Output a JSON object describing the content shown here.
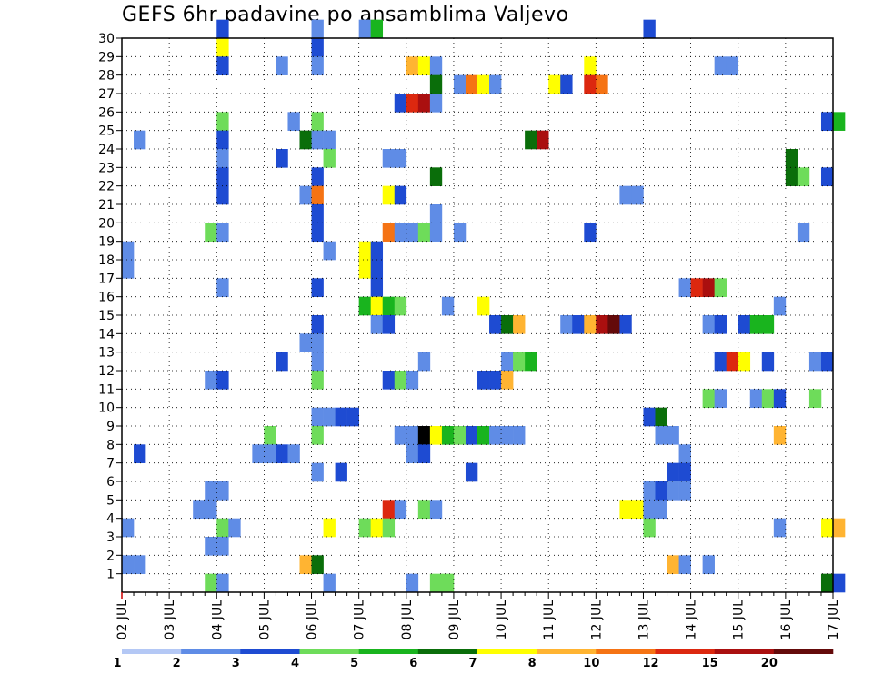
{
  "title": "GEFS 6hr padavine po ansamblima Valjevo",
  "chart_data": {
    "type": "heatmap",
    "title": "GEFS 6hr padavine po ansamblima Valjevo",
    "xlabel": "",
    "ylabel": "",
    "x_tick_labels": [
      "02 JUL",
      "03 JUL",
      "04 JUL",
      "05 JUL",
      "06 JUL",
      "07 JUL",
      "08 JUL",
      "09 JUL",
      "10 JUL",
      "11 JUL",
      "12 JUL",
      "13 JUL",
      "14 JUL",
      "15 JUL",
      "16 JUL",
      "17 JUL"
    ],
    "y_tick_labels": [
      "1",
      "2",
      "3",
      "4",
      "5",
      "6",
      "7",
      "8",
      "9",
      "10",
      "11",
      "12",
      "13",
      "14",
      "15",
      "16",
      "17",
      "18",
      "19",
      "20",
      "21",
      "22",
      "23",
      "24",
      "25",
      "26",
      "27",
      "28",
      "29",
      "30"
    ],
    "ylim": [
      0,
      30
    ],
    "time_steps": 60,
    "step_hours": 6,
    "grid": true,
    "colorbar": {
      "labels": [
        "1",
        "2",
        "3",
        "4",
        "5",
        "6",
        "7",
        "8",
        "10",
        "12",
        "15",
        "20"
      ],
      "colors": [
        "#b4c8f5",
        "#5f8ce6",
        "#1e4bd2",
        "#6edc5a",
        "#19b41e",
        "#0a6e0a",
        "#ffff00",
        "#ffb432",
        "#f57314",
        "#dc280f",
        "#aa0f0f",
        "#640a0a"
      ]
    },
    "cells": [
      [
        8,
        30,
        2
      ],
      [
        16,
        30,
        1
      ],
      [
        20,
        30,
        1
      ],
      [
        21,
        30,
        4
      ],
      [
        44,
        30,
        2
      ],
      [
        8,
        29,
        6
      ],
      [
        16,
        29,
        2
      ],
      [
        8,
        28,
        2
      ],
      [
        13,
        28,
        1
      ],
      [
        16,
        28,
        1
      ],
      [
        24,
        28,
        7
      ],
      [
        25,
        28,
        6
      ],
      [
        26,
        28,
        1
      ],
      [
        39,
        28,
        6
      ],
      [
        50,
        28,
        1
      ],
      [
        51,
        28,
        1
      ],
      [
        26,
        27,
        5
      ],
      [
        28,
        27,
        1
      ],
      [
        29,
        27,
        8
      ],
      [
        30,
        27,
        6
      ],
      [
        31,
        27,
        1
      ],
      [
        36,
        27,
        6
      ],
      [
        37,
        27,
        2
      ],
      [
        39,
        27,
        9
      ],
      [
        40,
        27,
        8
      ],
      [
        23,
        26,
        2
      ],
      [
        24,
        26,
        9
      ],
      [
        25,
        26,
        10
      ],
      [
        26,
        26,
        1
      ],
      [
        8,
        25,
        3
      ],
      [
        14,
        25,
        1
      ],
      [
        16,
        25,
        3
      ],
      [
        59,
        25,
        2
      ],
      [
        60,
        25,
        4
      ],
      [
        1,
        24,
        1
      ],
      [
        8,
        24,
        2
      ],
      [
        15,
        24,
        5
      ],
      [
        16,
        24,
        1
      ],
      [
        17,
        24,
        1
      ],
      [
        34,
        24,
        5
      ],
      [
        35,
        24,
        10
      ],
      [
        8,
        23,
        1
      ],
      [
        13,
        23,
        2
      ],
      [
        17,
        23,
        3
      ],
      [
        22,
        23,
        1
      ],
      [
        23,
        23,
        1
      ],
      [
        56,
        23,
        5
      ],
      [
        8,
        22,
        2
      ],
      [
        16,
        22,
        2
      ],
      [
        26,
        22,
        5
      ],
      [
        56,
        22,
        5
      ],
      [
        57,
        22,
        3
      ],
      [
        59,
        22,
        2
      ],
      [
        8,
        21,
        2
      ],
      [
        15,
        21,
        1
      ],
      [
        16,
        21,
        8
      ],
      [
        22,
        21,
        6
      ],
      [
        23,
        21,
        2
      ],
      [
        42,
        21,
        1
      ],
      [
        43,
        21,
        1
      ],
      [
        16,
        20,
        2
      ],
      [
        26,
        20,
        1
      ],
      [
        7,
        19,
        3
      ],
      [
        8,
        19,
        1
      ],
      [
        16,
        19,
        2
      ],
      [
        22,
        19,
        8
      ],
      [
        23,
        19,
        1
      ],
      [
        24,
        19,
        1
      ],
      [
        25,
        19,
        3
      ],
      [
        26,
        19,
        1
      ],
      [
        28,
        19,
        1
      ],
      [
        39,
        19,
        2
      ],
      [
        57,
        19,
        1
      ],
      [
        0,
        18,
        1
      ],
      [
        17,
        18,
        1
      ],
      [
        20,
        18,
        6
      ],
      [
        21,
        18,
        2
      ],
      [
        0,
        17,
        1
      ],
      [
        20,
        17,
        6
      ],
      [
        21,
        17,
        2
      ],
      [
        8,
        16,
        1
      ],
      [
        16,
        16,
        2
      ],
      [
        21,
        16,
        2
      ],
      [
        47,
        16,
        1
      ],
      [
        48,
        16,
        9
      ],
      [
        49,
        16,
        10
      ],
      [
        50,
        16,
        3
      ],
      [
        20,
        15,
        4
      ],
      [
        21,
        15,
        6
      ],
      [
        22,
        15,
        4
      ],
      [
        23,
        15,
        3
      ],
      [
        27,
        15,
        1
      ],
      [
        30,
        15,
        6
      ],
      [
        55,
        15,
        1
      ],
      [
        16,
        14,
        2
      ],
      [
        21,
        14,
        1
      ],
      [
        22,
        14,
        2
      ],
      [
        31,
        14,
        2
      ],
      [
        32,
        14,
        5
      ],
      [
        33,
        14,
        7
      ],
      [
        37,
        14,
        1
      ],
      [
        38,
        14,
        2
      ],
      [
        39,
        14,
        7
      ],
      [
        40,
        14,
        10
      ],
      [
        41,
        14,
        11
      ],
      [
        42,
        14,
        2
      ],
      [
        49,
        14,
        1
      ],
      [
        50,
        14,
        2
      ],
      [
        52,
        14,
        2
      ],
      [
        53,
        14,
        4
      ],
      [
        54,
        14,
        4
      ],
      [
        15,
        13,
        1
      ],
      [
        16,
        13,
        1
      ],
      [
        13,
        12,
        2
      ],
      [
        16,
        12,
        1
      ],
      [
        25,
        12,
        1
      ],
      [
        32,
        12,
        1
      ],
      [
        33,
        12,
        3
      ],
      [
        34,
        12,
        4
      ],
      [
        50,
        12,
        2
      ],
      [
        51,
        12,
        9
      ],
      [
        52,
        12,
        6
      ],
      [
        54,
        12,
        2
      ],
      [
        58,
        12,
        1
      ],
      [
        59,
        12,
        2
      ],
      [
        7,
        11,
        1
      ],
      [
        8,
        11,
        2
      ],
      [
        16,
        11,
        3
      ],
      [
        22,
        11,
        2
      ],
      [
        23,
        11,
        3
      ],
      [
        24,
        11,
        1
      ],
      [
        30,
        11,
        2
      ],
      [
        31,
        11,
        2
      ],
      [
        32,
        11,
        7
      ],
      [
        49,
        10,
        3
      ],
      [
        50,
        10,
        1
      ],
      [
        53,
        10,
        1
      ],
      [
        54,
        10,
        3
      ],
      [
        55,
        10,
        2
      ],
      [
        58,
        10,
        3
      ],
      [
        16,
        9,
        1
      ],
      [
        17,
        9,
        1
      ],
      [
        18,
        9,
        2
      ],
      [
        19,
        9,
        2
      ],
      [
        44,
        9,
        2
      ],
      [
        45,
        9,
        5
      ],
      [
        12,
        8,
        3
      ],
      [
        16,
        8,
        3
      ],
      [
        23,
        8,
        1
      ],
      [
        24,
        8,
        1
      ],
      [
        25,
        8,
        12
      ],
      [
        26,
        8,
        6
      ],
      [
        27,
        8,
        4
      ],
      [
        28,
        8,
        3
      ],
      [
        29,
        8,
        2
      ],
      [
        30,
        8,
        4
      ],
      [
        31,
        8,
        1
      ],
      [
        32,
        8,
        1
      ],
      [
        33,
        8,
        1
      ],
      [
        45,
        8,
        1
      ],
      [
        46,
        8,
        1
      ],
      [
        55,
        8,
        7
      ],
      [
        1,
        7,
        2
      ],
      [
        11,
        7,
        1
      ],
      [
        12,
        7,
        1
      ],
      [
        13,
        7,
        2
      ],
      [
        14,
        7,
        1
      ],
      [
        24,
        7,
        1
      ],
      [
        25,
        7,
        2
      ],
      [
        47,
        7,
        1
      ],
      [
        16,
        6,
        1
      ],
      [
        18,
        6,
        2
      ],
      [
        29,
        6,
        2
      ],
      [
        46,
        6,
        2
      ],
      [
        47,
        6,
        2
      ],
      [
        7,
        5,
        1
      ],
      [
        8,
        5,
        1
      ],
      [
        44,
        5,
        1
      ],
      [
        45,
        5,
        2
      ],
      [
        46,
        5,
        1
      ],
      [
        47,
        5,
        1
      ],
      [
        6,
        4,
        1
      ],
      [
        7,
        4,
        1
      ],
      [
        22,
        4,
        9
      ],
      [
        23,
        4,
        1
      ],
      [
        25,
        4,
        3
      ],
      [
        26,
        4,
        1
      ],
      [
        42,
        4,
        6
      ],
      [
        43,
        4,
        6
      ],
      [
        44,
        4,
        1
      ],
      [
        45,
        4,
        1
      ],
      [
        0,
        3,
        1
      ],
      [
        8,
        3,
        3
      ],
      [
        9,
        3,
        1
      ],
      [
        17,
        3,
        6
      ],
      [
        20,
        3,
        3
      ],
      [
        21,
        3,
        6
      ],
      [
        22,
        3,
        3
      ],
      [
        44,
        3,
        3
      ],
      [
        55,
        3,
        1
      ],
      [
        59,
        3,
        6
      ],
      [
        60,
        3,
        7
      ],
      [
        7,
        2,
        1
      ],
      [
        8,
        2,
        1
      ],
      [
        0,
        1,
        1
      ],
      [
        1,
        1,
        1
      ],
      [
        15,
        1,
        7
      ],
      [
        16,
        1,
        5
      ],
      [
        46,
        1,
        7
      ],
      [
        47,
        1,
        1
      ],
      [
        49,
        1,
        1
      ],
      [
        7,
        0,
        3
      ],
      [
        8,
        0,
        1
      ],
      [
        17,
        0,
        1
      ],
      [
        24,
        0,
        1
      ],
      [
        26,
        0,
        3
      ],
      [
        27,
        0,
        3
      ],
      [
        59,
        0,
        5
      ],
      [
        60,
        0,
        2
      ]
    ]
  }
}
